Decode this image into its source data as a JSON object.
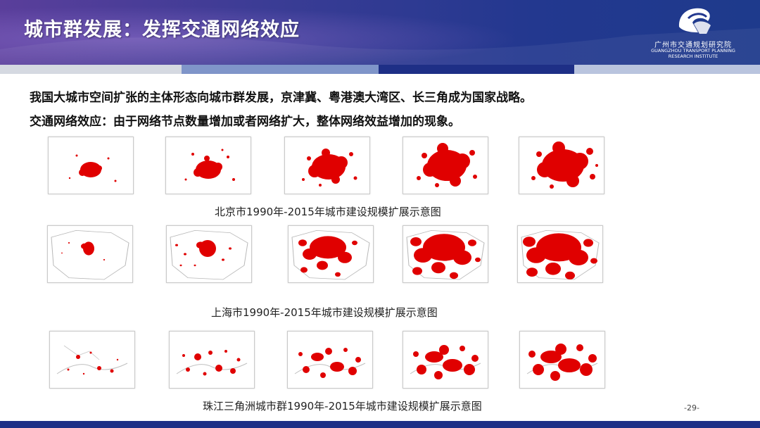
{
  "header": {
    "title": "城市群发展：发挥交通网络效应",
    "logo": {
      "name": "广州市交通规划研究院",
      "en_line1": "GUANGZHOU TRANSPORT PLANNING",
      "en_line2": "RESEARCH INSTITUTE"
    }
  },
  "body": {
    "line1": "我国大城市空间扩张的主体形态向城市群发展，京津冀、粤港澳大湾区、长三角成为国家战略。",
    "line2": "交通网络效应：由于网络节点数量增加或者网络扩大，整体网络效益增加的现象。"
  },
  "captions": {
    "beijing": "北京市1990年-2015年城市建设规模扩展示意图",
    "shanghai": "上海市1990年-2015年城市建设规模扩展示意图",
    "prd": "珠江三角洲城市群1990年-2015年城市建设规模扩展示意图"
  },
  "page_number": "-29-",
  "colors": {
    "urban": "#ff0000",
    "header": "#23388f",
    "footer": "#1e2f86"
  }
}
